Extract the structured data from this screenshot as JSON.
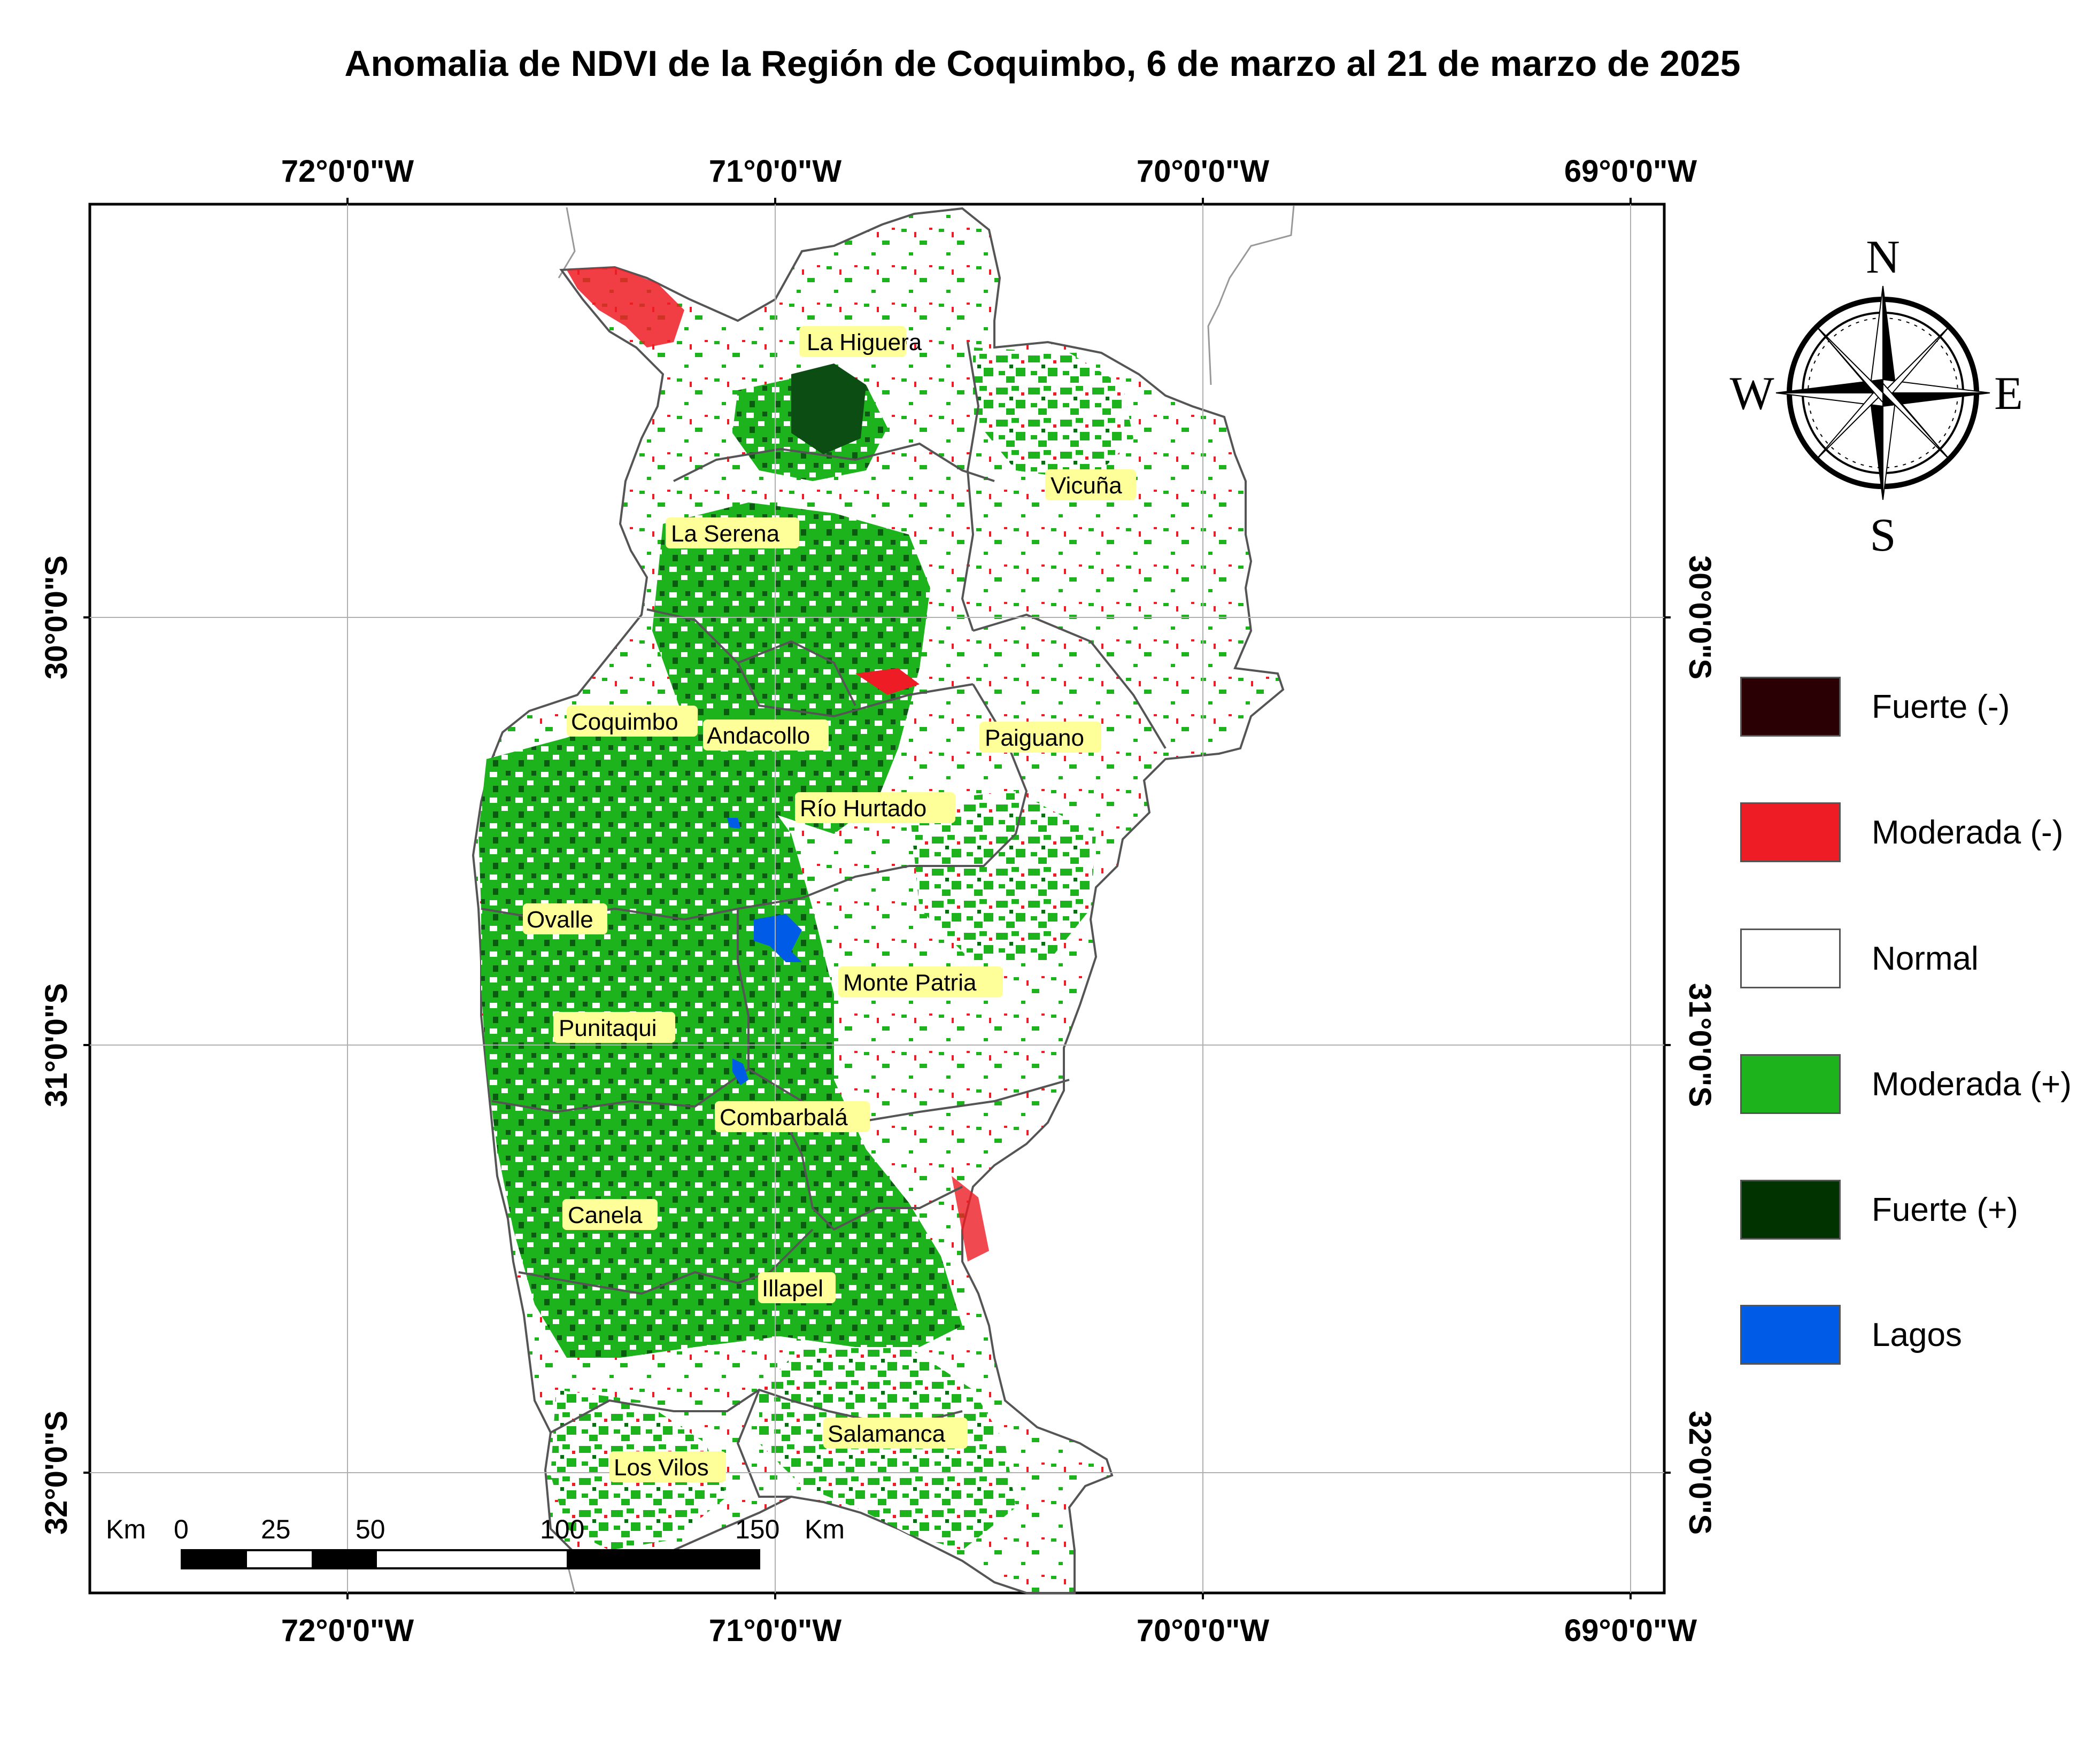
{
  "title": "Anomalia de NDVI de la Región de Coquimbo, 6 de marzo al 21 de marzo de 2025",
  "coords": {
    "top_lon": [
      "72°0'0\"W",
      "71°0'0\"W",
      "70°0'0\"W",
      "69°0'0\"W"
    ],
    "bottom_lon": [
      "72°0'0\"W",
      "71°0'0\"W",
      "70°0'0\"W",
      "69°0'0\"W"
    ],
    "left_lat": [
      "30°0'0\"S",
      "31°0'0\"S",
      "32°0'0\"S"
    ],
    "right_lat": [
      "30°0'0\"S",
      "31°0'0\"S",
      "32°0'0\"S"
    ]
  },
  "communes": [
    "La Higuera",
    "Vicuña",
    "La Serena",
    "Coquimbo",
    "Andacollo",
    "Paiguano",
    "Río Hurtado",
    "Ovalle",
    "Monte Patria",
    "Punitaqui",
    "Combarbalá",
    "Canela",
    "Illapel",
    "Salamanca",
    "Los Vilos"
  ],
  "compass": {
    "n": "N",
    "s": "S",
    "e": "E",
    "w": "W"
  },
  "scale": {
    "unit_left": "Km",
    "unit_right": "Km",
    "ticks": [
      "0",
      "25",
      "50",
      "100",
      "150"
    ]
  },
  "legend": [
    {
      "label": "Fuerte (-)",
      "color": "#2a0004"
    },
    {
      "label": "Moderada (-)",
      "color": "#ee1c24"
    },
    {
      "label": "Normal",
      "color": "#ffffff"
    },
    {
      "label": "Moderada (+)",
      "color": "#1db31d"
    },
    {
      "label": "Fuerte (+)",
      "color": "#003300"
    },
    {
      "label": "Lagos",
      "color": "#005ce6"
    }
  ]
}
